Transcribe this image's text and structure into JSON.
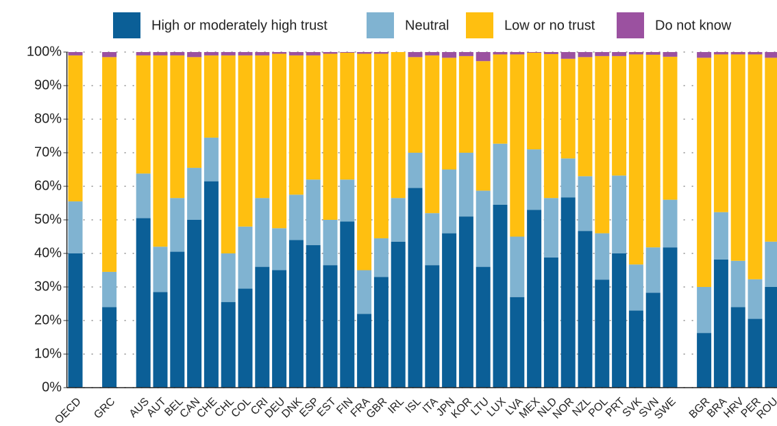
{
  "chart_data": {
    "type": "stacked_bar",
    "categories": [
      "OECD",
      null,
      "GRC",
      null,
      "AUS",
      "AUT",
      "BEL",
      "CAN",
      "CHE",
      "CHL",
      "COL",
      "CRI",
      "DEU",
      "DNK",
      "ESP",
      "EST",
      "FIN",
      "FRA",
      "GBR",
      "IRL",
      "ISL",
      "ITA",
      "JPN",
      "KOR",
      "LTU",
      "LUX",
      "LVA",
      "MEX",
      "NLD",
      "NOR",
      "NZL",
      "POL",
      "PRT",
      "SVK",
      "SVN",
      "SWE",
      null,
      "BGR",
      "BRA",
      "HRV",
      "PER",
      "ROU"
    ],
    "series": [
      {
        "name": "High or moderately high trust",
        "color": "#0b5f97",
        "values": [
          40,
          null,
          24,
          null,
          50.5,
          28.5,
          40.5,
          50,
          61.5,
          25.5,
          29.5,
          36,
          35,
          44,
          42.5,
          36.5,
          49.5,
          22,
          33,
          43.5,
          59.5,
          36.5,
          46,
          51,
          36,
          54.5,
          27,
          53,
          38.8,
          56.7,
          46.7,
          32.2,
          40,
          23,
          28.3,
          41.8,
          null,
          16.3,
          38.2,
          24,
          20.5,
          30
        ]
      },
      {
        "name": "Neutral",
        "color": "#80b3d1",
        "values": [
          15.5,
          null,
          10.5,
          null,
          13.3,
          13.5,
          16,
          15.5,
          13,
          14.5,
          18.5,
          20.5,
          12.5,
          13.5,
          19.5,
          13.5,
          12.5,
          13,
          11.5,
          13,
          10.5,
          15.5,
          19,
          19,
          22.7,
          18.2,
          18,
          18,
          17.7,
          11.6,
          16.3,
          13.8,
          23.2,
          13.7,
          13.5,
          14.2,
          null,
          13.7,
          14.1,
          13.8,
          11.8,
          13.5
        ]
      },
      {
        "name": "Low or no trust",
        "color": "#ffbf10",
        "values": [
          43.5,
          null,
          64,
          null,
          35.2,
          57,
          42.5,
          33,
          24.5,
          59,
          51,
          42.5,
          52,
          41.5,
          37,
          49.5,
          37.8,
          64.5,
          55,
          43.5,
          28.5,
          47,
          33.3,
          28.8,
          38.6,
          26.6,
          54.3,
          28.8,
          42.9,
          29.7,
          35.5,
          52.8,
          35.6,
          62.6,
          57.4,
          42.6,
          null,
          68.3,
          47,
          61.5,
          67,
          54.8
        ]
      },
      {
        "name": "Do not know",
        "color": "#9b51a0",
        "values": [
          1,
          null,
          1.5,
          null,
          1,
          1,
          1,
          1.5,
          1,
          1,
          1,
          1,
          0.5,
          1,
          1,
          0.5,
          0.2,
          0.5,
          0.5,
          0,
          1.5,
          1,
          1.7,
          1.2,
          2.7,
          0.7,
          0.7,
          0.2,
          0.6,
          2,
          1.5,
          1.2,
          1.2,
          0.7,
          0.8,
          1.4,
          null,
          1.7,
          0.7,
          0.7,
          0.7,
          1.7
        ]
      }
    ],
    "ylim": [
      0,
      100
    ],
    "yticks": [
      {
        "value": 0,
        "label": "0%"
      },
      {
        "value": 10,
        "label": "10%"
      },
      {
        "value": 20,
        "label": "20%"
      },
      {
        "value": 30,
        "label": "30%"
      },
      {
        "value": 40,
        "label": "40%"
      },
      {
        "value": 50,
        "label": "50%"
      },
      {
        "value": 60,
        "label": "60%"
      },
      {
        "value": 70,
        "label": "70%"
      },
      {
        "value": 80,
        "label": "80%"
      },
      {
        "value": 90,
        "label": "90%"
      },
      {
        "value": 100,
        "label": "100%"
      }
    ],
    "grid": true,
    "legend": "top"
  }
}
